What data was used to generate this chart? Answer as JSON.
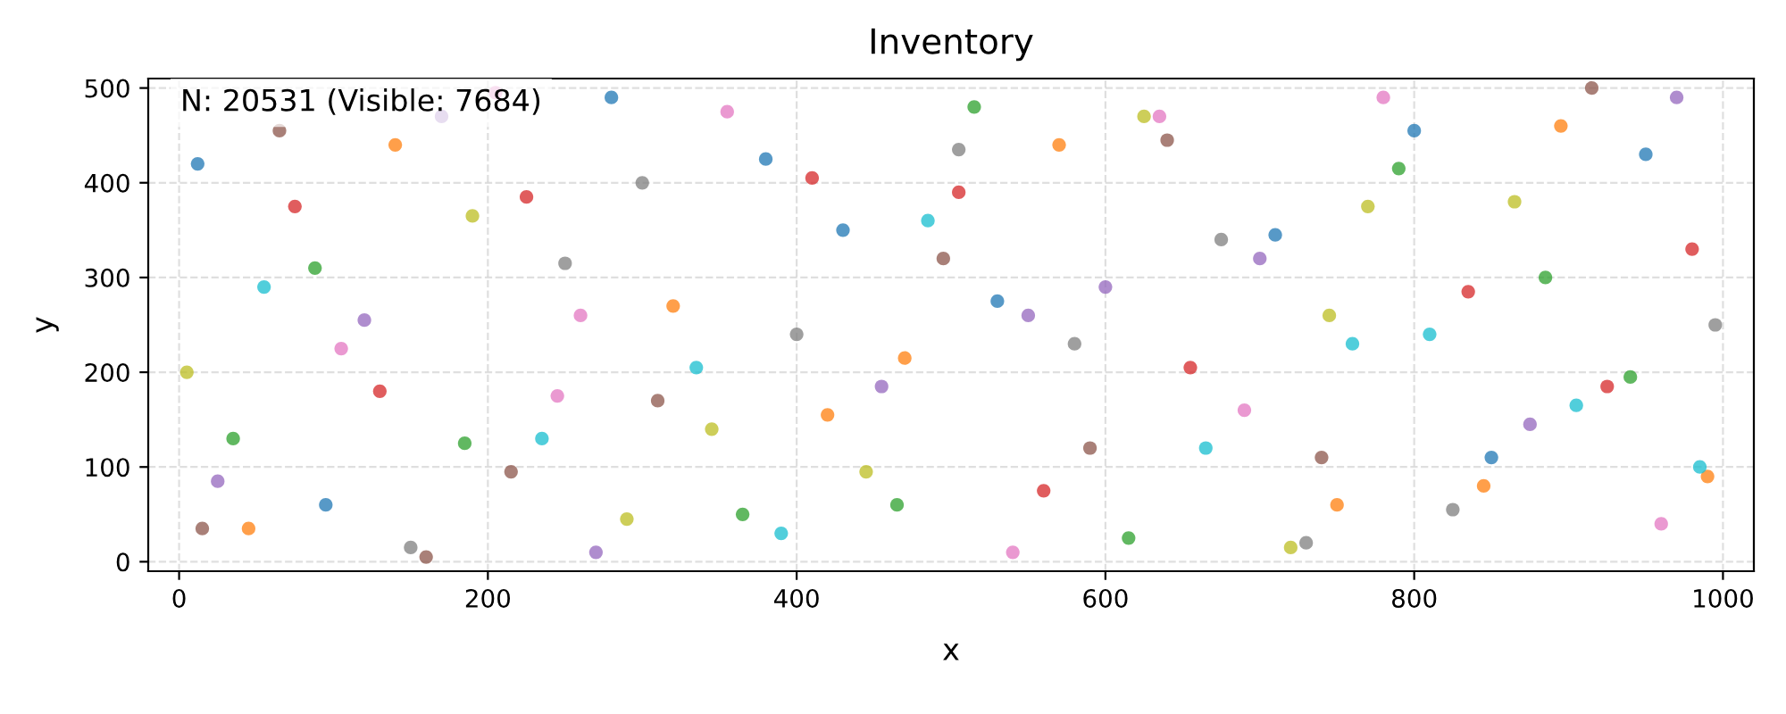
{
  "chart_data": {
    "type": "scatter",
    "title": "Inventory",
    "xlabel": "x",
    "ylabel": "y",
    "annotations": [
      "N: 20531 (Visible: 7684)"
    ],
    "x": [
      12,
      45,
      88,
      130,
      170,
      215,
      260,
      300,
      345,
      390,
      430,
      470,
      515,
      560,
      600,
      640,
      690,
      730,
      770,
      810,
      850,
      895,
      940,
      980,
      25,
      65,
      105,
      150,
      190,
      235,
      280,
      320,
      365,
      410,
      455,
      495,
      540,
      580,
      625,
      665,
      710,
      750,
      790,
      835,
      875,
      915,
      960,
      995,
      5,
      55,
      95,
      140,
      185,
      225,
      270,
      310,
      355,
      400,
      445,
      485,
      530,
      570,
      615,
      655,
      700,
      740,
      780,
      825,
      865,
      905,
      950,
      990,
      35,
      75,
      120,
      160,
      205,
      250,
      290,
      335,
      380,
      420,
      465,
      505,
      550,
      590,
      635,
      675,
      720,
      760,
      800,
      845,
      885,
      925,
      970,
      15,
      245,
      505,
      745,
      985
    ],
    "values": [
      420,
      35,
      310,
      180,
      470,
      95,
      260,
      400,
      140,
      30,
      350,
      215,
      480,
      75,
      290,
      445,
      160,
      20,
      375,
      240,
      110,
      460,
      195,
      330,
      85,
      455,
      225,
      15,
      365,
      130,
      490,
      270,
      50,
      405,
      185,
      320,
      10,
      230,
      470,
      120,
      345,
      60,
      415,
      285,
      145,
      500,
      40,
      250,
      200,
      290,
      60,
      440,
      125,
      385,
      10,
      170,
      475,
      240,
      95,
      360,
      275,
      440,
      25,
      205,
      320,
      110,
      490,
      55,
      380,
      165,
      430,
      90,
      130,
      375,
      255,
      5,
      495,
      315,
      45,
      205,
      425,
      155,
      60,
      390,
      260,
      120,
      470,
      340,
      15,
      230,
      455,
      80,
      300,
      185,
      490,
      35,
      175,
      435,
      260,
      100
    ],
    "colors": [
      "#1f77b4",
      "#ff7f0e",
      "#2ca02c",
      "#d62728",
      "#9467bd",
      "#8c564b",
      "#e377c2",
      "#7f7f7f",
      "#bcbd22",
      "#17becf",
      "#1f77b4",
      "#ff7f0e",
      "#2ca02c",
      "#d62728",
      "#9467bd",
      "#8c564b",
      "#e377c2",
      "#7f7f7f",
      "#bcbd22",
      "#17becf",
      "#1f77b4",
      "#ff7f0e",
      "#2ca02c",
      "#d62728",
      "#9467bd",
      "#8c564b",
      "#e377c2",
      "#7f7f7f",
      "#bcbd22",
      "#17becf",
      "#1f77b4",
      "#ff7f0e",
      "#2ca02c",
      "#d62728",
      "#9467bd",
      "#8c564b",
      "#e377c2",
      "#7f7f7f",
      "#bcbd22",
      "#17becf",
      "#1f77b4",
      "#ff7f0e",
      "#2ca02c",
      "#d62728",
      "#9467bd",
      "#8c564b",
      "#e377c2",
      "#7f7f7f",
      "#bcbd22",
      "#17becf",
      "#1f77b4",
      "#ff7f0e",
      "#2ca02c",
      "#d62728",
      "#9467bd",
      "#8c564b",
      "#e377c2",
      "#7f7f7f",
      "#bcbd22",
      "#17becf",
      "#1f77b4",
      "#ff7f0e",
      "#2ca02c",
      "#d62728",
      "#9467bd",
      "#8c564b",
      "#e377c2",
      "#7f7f7f",
      "#bcbd22",
      "#17becf",
      "#1f77b4",
      "#ff7f0e",
      "#2ca02c",
      "#d62728",
      "#9467bd",
      "#8c564b",
      "#e377c2",
      "#7f7f7f",
      "#bcbd22",
      "#17becf",
      "#1f77b4",
      "#ff7f0e",
      "#2ca02c",
      "#d62728",
      "#9467bd",
      "#8c564b",
      "#e377c2",
      "#7f7f7f",
      "#bcbd22",
      "#17becf",
      "#1f77b4",
      "#ff7f0e",
      "#2ca02c",
      "#d62728",
      "#9467bd",
      "#8c564b",
      "#e377c2",
      "#7f7f7f",
      "#bcbd22",
      "#17becf"
    ],
    "xlim": [
      -20,
      1020
    ],
    "xticks": [
      0,
      200,
      400,
      600,
      800,
      1000
    ],
    "ylim": [
      -10,
      510
    ],
    "yticks": [
      0,
      100,
      200,
      300,
      400,
      500
    ],
    "grid": true,
    "marker": "circle"
  }
}
